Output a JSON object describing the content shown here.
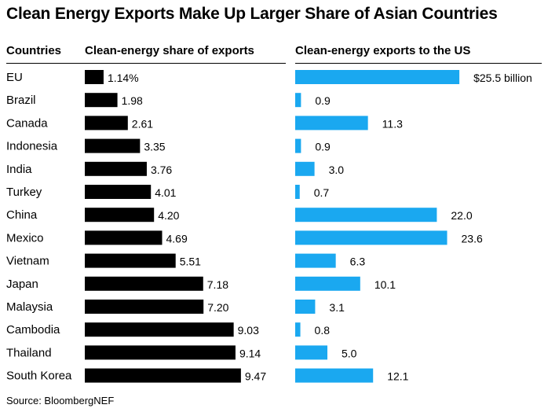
{
  "chart_data": {
    "type": "bar",
    "title": "Clean Energy Exports Make Up Larger Share of Asian Countries",
    "category_header": "Countries",
    "categories": [
      "EU",
      "Brazil",
      "Canada",
      "Indonesia",
      "India",
      "Turkey",
      "China",
      "Mexico",
      "Vietnam",
      "Japan",
      "Malaysia",
      "Cambodia",
      "Thailand",
      "South Korea"
    ],
    "series": [
      {
        "name": "Clean-energy share of exports",
        "values": [
          1.14,
          1.98,
          2.61,
          3.35,
          3.76,
          4.01,
          4.2,
          4.69,
          5.51,
          7.18,
          7.2,
          9.03,
          9.14,
          9.47
        ],
        "labels": [
          "1.14%",
          "1.98",
          "2.61",
          "3.35",
          "3.76",
          "4.01",
          "4.20",
          "4.69",
          "5.51",
          "7.18",
          "7.20",
          "9.03",
          "9.14",
          "9.47"
        ],
        "color": "#000000"
      },
      {
        "name": "Clean-energy exports to the US",
        "values": [
          25.5,
          0.9,
          11.3,
          0.9,
          3.0,
          0.7,
          22.0,
          23.6,
          6.3,
          10.1,
          3.1,
          0.8,
          5.0,
          12.1
        ],
        "labels": [
          "$25.5 billion",
          "0.9",
          "11.3",
          "0.9",
          "3.0",
          "0.7",
          "22.0",
          "23.6",
          "6.3",
          "10.1",
          "3.1",
          "0.8",
          "5.0",
          "12.1"
        ],
        "color": "#1aa8f0"
      }
    ],
    "source": "Source: BloombergNEF"
  }
}
